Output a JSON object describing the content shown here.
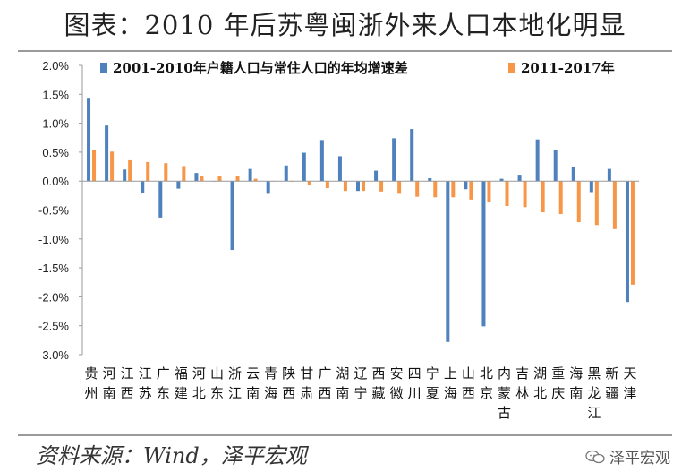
{
  "header": {
    "title": "图表：2010 年后苏粤闽浙外来人口本地化明显"
  },
  "footer": {
    "source": "资料来源：Wind，泽平宏观",
    "watermark": "泽平宏观",
    "watermark_icon": "chat-bubble-logo-icon"
  },
  "colors": {
    "series1": "#4f81bd",
    "series2": "#f79646",
    "axis": "#999999"
  },
  "chart_data": {
    "type": "bar",
    "title": "",
    "xlabel": "",
    "ylabel": "",
    "ylim": [
      -0.03,
      0.02
    ],
    "yticks": [
      0.02,
      0.015,
      0.01,
      0.005,
      0.0,
      -0.005,
      -0.01,
      -0.015,
      -0.02,
      -0.025,
      -0.03
    ],
    "ytick_labels": [
      "2.0%",
      "1.5%",
      "1.0%",
      "0.5%",
      "0.0%",
      "-0.5%",
      "-1.0%",
      "-1.5%",
      "-2.0%",
      "-2.5%",
      "-3.0%"
    ],
    "grid": false,
    "legend_position": "top",
    "categories": [
      "贵州",
      "河南",
      "江西",
      "江苏",
      "广东",
      "福建",
      "河北",
      "山东",
      "浙江",
      "云南",
      "青海",
      "陕西",
      "甘肃",
      "广西",
      "湖南",
      "辽宁",
      "西藏",
      "安徽",
      "四川",
      "宁夏",
      "上海",
      "山西",
      "北京",
      "内蒙古",
      "吉林",
      "湖北",
      "重庆",
      "海南",
      "黑龙江",
      "新疆",
      "天津"
    ],
    "series": [
      {
        "name": "2001-2010年户籍人口与常住人口的年均增速差",
        "values": [
          0.0144,
          0.0096,
          0.002,
          -0.002,
          -0.0063,
          -0.0013,
          0.0014,
          0.0,
          -0.0119,
          0.0021,
          -0.0022,
          0.0027,
          0.0049,
          0.0071,
          0.0043,
          -0.0017,
          0.0018,
          0.0074,
          0.009,
          0.0005,
          -0.0278,
          -0.0014,
          -0.0251,
          0.0004,
          0.0011,
          0.0072,
          0.0054,
          0.0025,
          -0.0019,
          0.0021,
          -0.0209
        ]
      },
      {
        "name": "2011-2017年",
        "values": [
          0.0053,
          0.0051,
          0.0036,
          0.0033,
          0.0031,
          0.0026,
          0.0009,
          0.0008,
          0.0008,
          0.0004,
          0.0,
          -0.0001,
          -0.0007,
          -0.0012,
          -0.0017,
          -0.0017,
          -0.0018,
          -0.0022,
          -0.0027,
          -0.0028,
          -0.0028,
          -0.0032,
          -0.0036,
          -0.0043,
          -0.0045,
          -0.0054,
          -0.0057,
          -0.0071,
          -0.0076,
          -0.0083,
          -0.0179
        ]
      }
    ]
  }
}
